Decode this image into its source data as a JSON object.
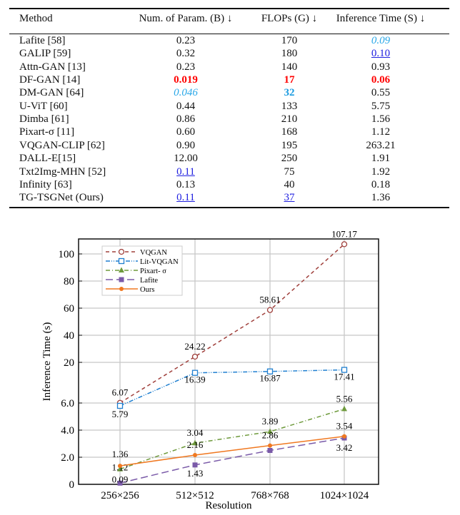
{
  "table": {
    "headers": [
      "Method",
      "Num. of Param. (B) ↓",
      "FLOPs (G) ↓",
      "Inference Time (S) ↓"
    ],
    "rows": [
      [
        {
          "v": "Lafite [58]"
        },
        {
          "v": "0.23"
        },
        {
          "v": "170"
        },
        {
          "v": "0.09",
          "s": "cyan-italic"
        }
      ],
      [
        {
          "v": "GALIP [59]"
        },
        {
          "v": "0.32"
        },
        {
          "v": "180"
        },
        {
          "v": "0.10",
          "s": "blue-underline"
        }
      ],
      [
        {
          "v": "Attn-GAN [13]"
        },
        {
          "v": "0.23"
        },
        {
          "v": "140"
        },
        {
          "v": "0.93"
        }
      ],
      [
        {
          "v": "DF-GAN [14]"
        },
        {
          "v": "0.019",
          "s": "red-bold"
        },
        {
          "v": "17",
          "s": "red-bold"
        },
        {
          "v": "0.06",
          "s": "red-bold"
        }
      ],
      [
        {
          "v": "DM-GAN [64]"
        },
        {
          "v": "0.046",
          "s": "cyan-italic"
        },
        {
          "v": "32",
          "s": "cyan-bold"
        },
        {
          "v": "0.55"
        }
      ],
      [
        {
          "v": "U-ViT [60]"
        },
        {
          "v": "0.44"
        },
        {
          "v": "133"
        },
        {
          "v": "5.75"
        }
      ],
      [
        {
          "v": "Dimba [61]"
        },
        {
          "v": "0.86"
        },
        {
          "v": "210"
        },
        {
          "v": "1.56"
        }
      ],
      [
        {
          "v": "Pixart-σ [11]"
        },
        {
          "v": "0.60"
        },
        {
          "v": "168"
        },
        {
          "v": "1.12"
        }
      ],
      [
        {
          "v": "VQGAN-CLIP [62]"
        },
        {
          "v": "0.90"
        },
        {
          "v": "195"
        },
        {
          "v": "263.21"
        }
      ],
      [
        {
          "v": "DALL-E[15]"
        },
        {
          "v": "12.00"
        },
        {
          "v": "250"
        },
        {
          "v": "1.91"
        }
      ],
      [
        {
          "v": "Txt2Img-MHN [52]"
        },
        {
          "v": "0.11",
          "s": "blue-underline"
        },
        {
          "v": "75"
        },
        {
          "v": "1.92"
        }
      ],
      [
        {
          "v": "Infinity [63]"
        },
        {
          "v": "0.13"
        },
        {
          "v": "40"
        },
        {
          "v": "0.18"
        }
      ],
      [
        {
          "v": "TG-TSGNet (Ours)"
        },
        {
          "v": "0.11",
          "s": "blue-underline"
        },
        {
          "v": "37",
          "s": "blue-underline"
        },
        {
          "v": "1.36"
        }
      ]
    ]
  },
  "chart_data": {
    "type": "line",
    "xlabel": "Resolution",
    "ylabel": "Inference Time (s)",
    "categories": [
      "256×256",
      "512×512",
      "768×768",
      "1024×1024"
    ],
    "yticks": [
      "0",
      "2.0",
      "4.0",
      "6.0",
      "20",
      "40",
      "60",
      "80",
      "100"
    ],
    "ytick_values": [
      0,
      2,
      4,
      6,
      20,
      40,
      60,
      80,
      100
    ],
    "grid": true,
    "legend_position": "top-left",
    "series": [
      {
        "name": "VQGAN",
        "color": "#a0403c",
        "marker": "circle-open",
        "dash": "5,4",
        "values": [
          6.07,
          24.22,
          58.61,
          107.17
        ],
        "labels": [
          "6.07",
          "24.22",
          "58.61",
          "107.17"
        ]
      },
      {
        "name": "Lit-VQGAN",
        "color": "#1f7fd0",
        "marker": "square-open",
        "dash": "6,2,1,2,1,2",
        "values": [
          5.79,
          16.39,
          16.87,
          17.41
        ],
        "labels": [
          "5.79",
          "16.39",
          "16.87",
          "17.41"
        ]
      },
      {
        "name": "Pixart- σ",
        "color": "#6e9a3c",
        "marker": "triangle",
        "dash": "6,3,1,3",
        "values": [
          1.12,
          3.04,
          3.89,
          5.56
        ],
        "labels": [
          "1.12",
          "3.04",
          "3.89",
          "5.56"
        ]
      },
      {
        "name": "Lafite",
        "color": "#7a5aa8",
        "marker": "square",
        "dash": "10,5",
        "values": [
          0.09,
          1.43,
          2.5,
          3.42
        ],
        "labels": [
          "0.09",
          "1.43",
          null,
          "3.42"
        ]
      },
      {
        "name": "Ours",
        "color": "#f07820",
        "marker": "dot",
        "dash": "",
        "values": [
          1.36,
          2.16,
          2.86,
          3.54
        ],
        "labels": [
          "1.36",
          "2.16",
          "2.86",
          "3.54"
        ]
      }
    ]
  }
}
